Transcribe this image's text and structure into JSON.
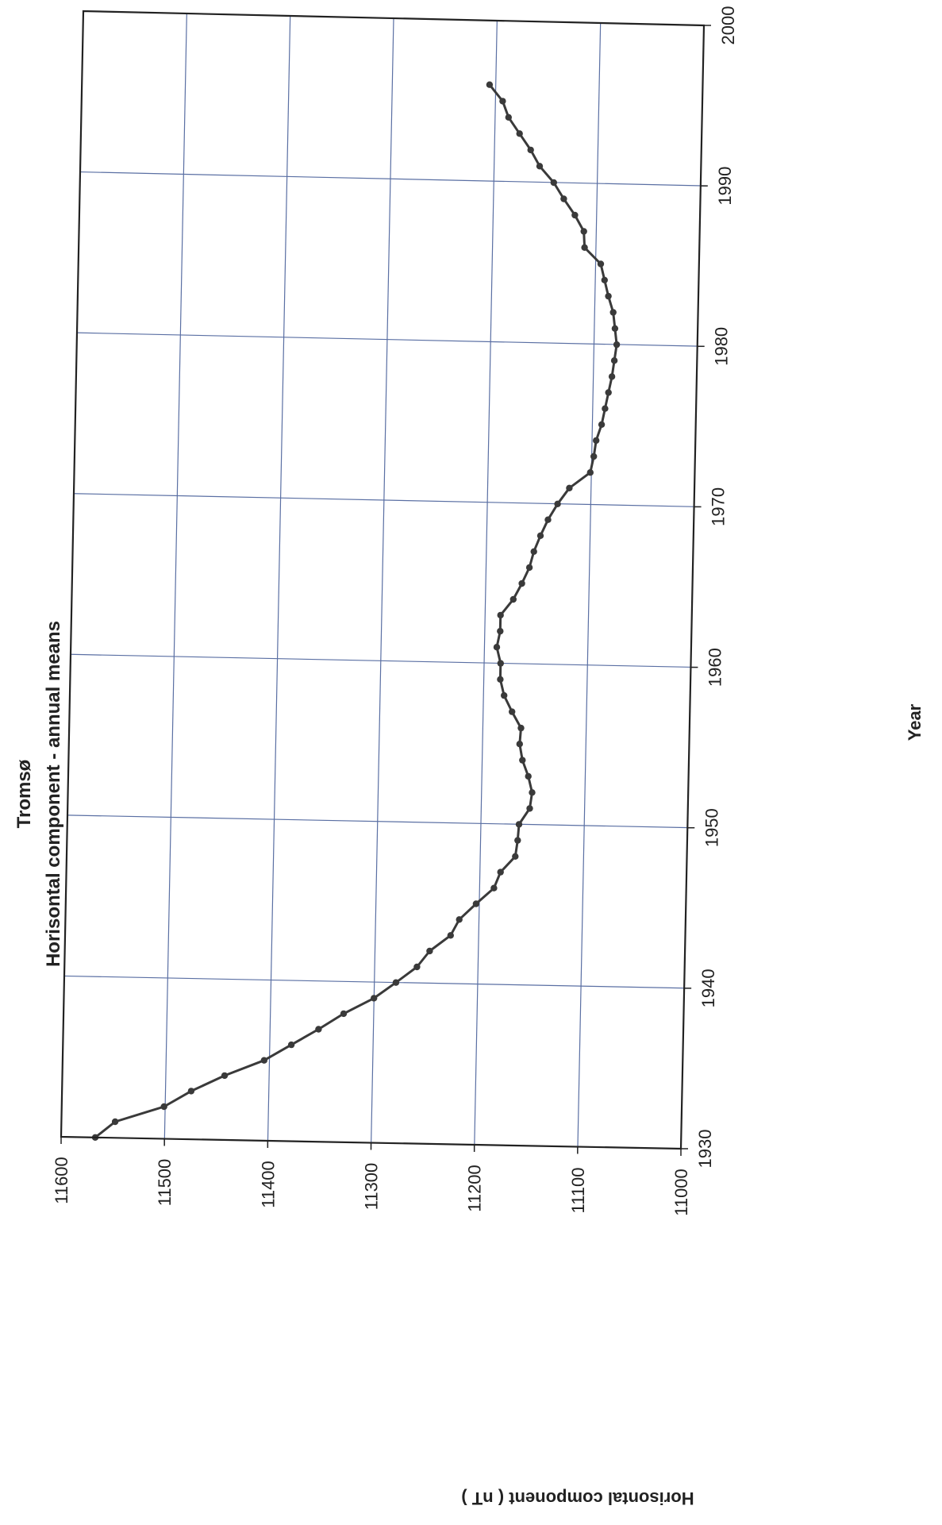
{
  "chart_data": {
    "type": "line",
    "title": "Tromsø",
    "subtitle": "Horisontal component - annual means",
    "xlabel": "Year",
    "ylabel": "Horisontal component ( nT )",
    "xlim": [
      1930,
      2000
    ],
    "ylim": [
      11000,
      11600
    ],
    "x_ticks": [
      1930,
      1940,
      1950,
      1960,
      1970,
      1980,
      1990,
      2000
    ],
    "y_ticks": [
      11000,
      11100,
      11200,
      11300,
      11400,
      11500,
      11600
    ],
    "grid": true,
    "colors": {
      "line": "#3a3a3a",
      "marker": "#3a3a3a",
      "grid": "#5a6fa3",
      "frame": "#222222"
    },
    "series": [
      {
        "x": [
          1930,
          1931,
          1932,
          1933,
          1934,
          1935,
          1936,
          1937,
          1938,
          1939,
          1940,
          1941,
          1942,
          1943,
          1944,
          1945,
          1946,
          1947,
          1948,
          1949,
          1950,
          1951,
          1952,
          1953,
          1954,
          1955,
          1956,
          1957,
          1958,
          1959,
          1960,
          1961,
          1962,
          1963,
          1964,
          1965,
          1966,
          1967,
          1968,
          1969,
          1970,
          1971,
          1972,
          1973,
          1974,
          1975,
          1976,
          1977,
          1978,
          1979,
          1980,
          1981,
          1982,
          1983,
          1984,
          1985,
          1986,
          1987,
          1988,
          1989,
          1990,
          1991,
          1992,
          1993,
          1994,
          1995,
          1996
        ],
        "values": [
          11567,
          11548,
          11501,
          11475,
          11443,
          11405,
          11379,
          11353,
          11329,
          11300,
          11279,
          11259,
          11247,
          11227,
          11219,
          11203,
          11186,
          11180,
          11166,
          11164,
          11163,
          11153,
          11151,
          11155,
          11161,
          11164,
          11163,
          11172,
          11180,
          11184,
          11184,
          11188,
          11185,
          11185,
          11173,
          11165,
          11158,
          11154,
          11148,
          11141,
          11132,
          11121,
          11101,
          11098,
          11096,
          11091,
          11088,
          11085,
          11082,
          11080,
          11078,
          11080,
          11082,
          11087,
          11091,
          11095,
          11111,
          11112,
          11121,
          11132,
          11142,
          11156,
          11165,
          11176,
          11187,
          11193,
          11206
        ]
      }
    ]
  }
}
